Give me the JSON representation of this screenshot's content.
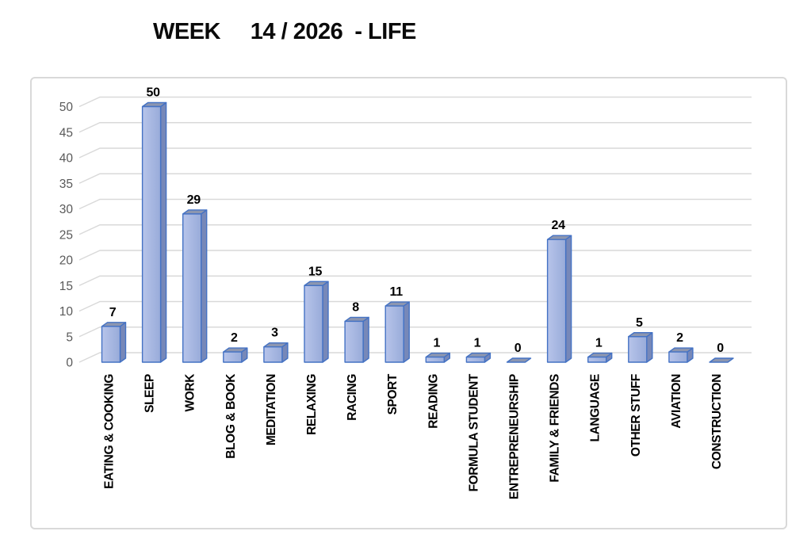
{
  "chart_data": {
    "type": "bar",
    "style": "excel-3d-column",
    "title": "WEEK     14 / 2026  - LIFE",
    "categories": [
      "EATING & COOKING",
      "SLEEP",
      "WORK",
      "BLOG & BOOK",
      "MEDITATION",
      "RELAXING",
      "RACING",
      "SPORT",
      "READING",
      "FORMULA STUDENT",
      "ENTREPRENEURSHIP",
      "FAMILY & FRIENDS",
      "LANGUAGE",
      "OTHER STUFF",
      "AVIATION",
      "CONSTRUCTION"
    ],
    "values": [
      7,
      50,
      29,
      2,
      3,
      15,
      8,
      11,
      1,
      1,
      0,
      24,
      1,
      5,
      2,
      0
    ],
    "xlabel": "",
    "ylabel": "",
    "ylim": [
      0,
      50
    ],
    "yticks": [
      0,
      5,
      10,
      15,
      20,
      25,
      30,
      35,
      40,
      45,
      50
    ],
    "grid": true,
    "legend": "none",
    "data_labels_shown": true,
    "x_labels_rotation_degrees": 90,
    "colors": {
      "bar_front_light": "#B7C4EA",
      "bar_front_dark": "#98ABD9",
      "bar_top": "#8C96B0",
      "bar_side": "#7788B8",
      "bar_border": "#4472C4",
      "gridline": "#D9D9D9",
      "axis_text": "#595959",
      "label_text": "#000000",
      "chart_border": "#D9D9D9",
      "background": "#FFFFFF",
      "title_text": "#0A0A0A"
    }
  }
}
